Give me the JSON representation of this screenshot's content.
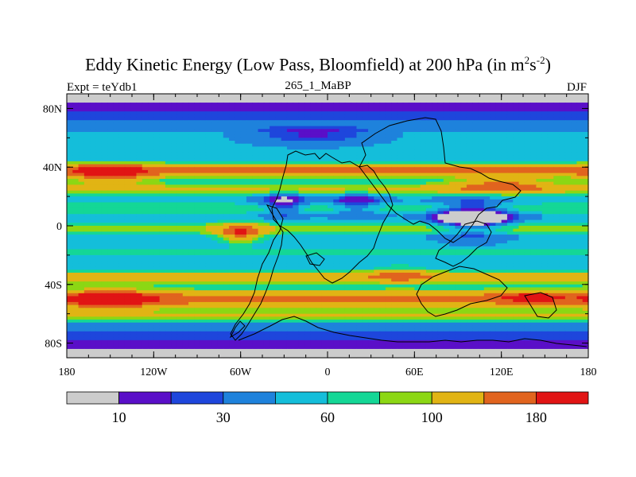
{
  "chart_data": {
    "type": "heatmap",
    "title": "Eddy Kinetic Energy (Low Pass, Bloomfield) at 200 hPa (in m",
    "title_units_sup1": "2",
    "title_units_mid": "s",
    "title_units_sup2": "-2",
    "title_units_end": ")",
    "subtitle_left": "Expt = teYdb1",
    "subtitle_center": "265_1_MaBP",
    "subtitle_right": "DJF",
    "x_ticks": [
      "180",
      "120W",
      "60W",
      "0",
      "60E",
      "120E",
      "180"
    ],
    "x_tick_values": [
      -180,
      -120,
      -60,
      0,
      60,
      120,
      180
    ],
    "y_ticks": [
      "80N",
      "40N",
      "0",
      "40S",
      "80S"
    ],
    "y_tick_values": [
      80,
      40,
      0,
      -40,
      -80
    ],
    "xlim": [
      -180,
      180
    ],
    "ylim": [
      -90,
      90
    ],
    "levels": [
      0,
      10,
      20,
      30,
      45,
      60,
      80,
      100,
      140,
      180,
      240
    ],
    "colorbar_colors": [
      "#cccccc",
      "#5a0fc8",
      "#1e46dc",
      "#1e82dc",
      "#14beda",
      "#14d796",
      "#8cd714",
      "#e1b414",
      "#e1641e",
      "#e11414"
    ],
    "colorbar_labels": [
      "10",
      "30",
      "60",
      "100",
      "180"
    ],
    "colorbar_label_boundaries": [
      1,
      3,
      5,
      7,
      9
    ],
    "features": [
      {
        "lon": -150,
        "lat": 35,
        "sx": 30,
        "sy": 7,
        "amp": 85
      },
      {
        "lon": 120,
        "lat": 28,
        "sx": 35,
        "sy": 6,
        "amp": 80
      },
      {
        "lon": -60,
        "lat": -5,
        "sx": 15,
        "sy": 6,
        "amp": 110
      },
      {
        "lon": -150,
        "lat": -50,
        "sx": 30,
        "sy": 7,
        "amp": 85
      },
      {
        "lon": 50,
        "lat": -33,
        "sx": 20,
        "sy": 5,
        "amp": 60
      },
      {
        "lon": 140,
        "lat": -48,
        "sx": 20,
        "sy": 4,
        "amp": 60
      },
      {
        "lon": 100,
        "lat": 5,
        "sx": 25,
        "sy": 10,
        "amp": -90
      },
      {
        "lon": 20,
        "lat": 15,
        "sx": 18,
        "sy": 8,
        "amp": -40
      },
      {
        "lon": -10,
        "lat": 62,
        "sx": 40,
        "sy": 6,
        "amp": -30
      },
      {
        "lon": -30,
        "lat": 15,
        "sx": 15,
        "sy": 8,
        "amp": -50
      }
    ]
  }
}
